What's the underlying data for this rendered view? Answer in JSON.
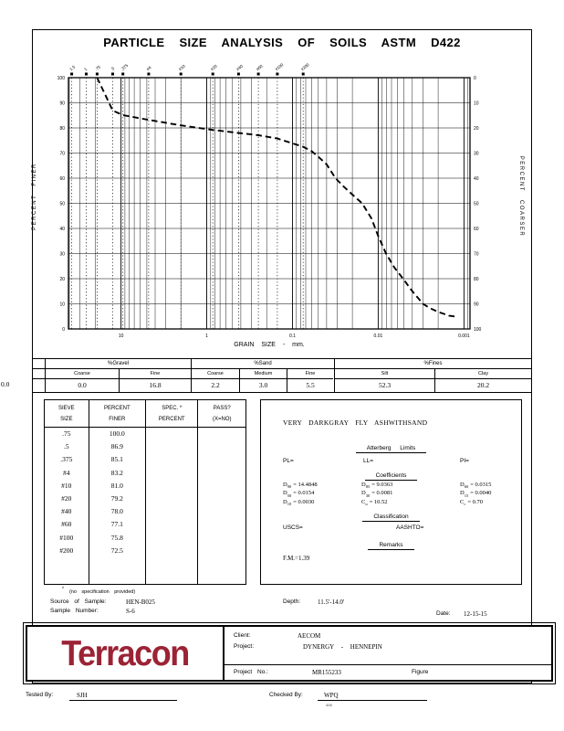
{
  "title": "PARTICLE SIZE ANALYSIS OF SOILS ASTM D422",
  "axis": {
    "left": "PERCENT FINER",
    "right": "PERCENT COARSER"
  },
  "chart_data": {
    "type": "line",
    "title": "",
    "xlabel": "GRAIN SIZE - mm.",
    "ylabel_left": "PERCENT FINER",
    "ylabel_right": "PERCENT COARSER",
    "x_scale": "log",
    "x_min": 41,
    "x_max": 0.00085,
    "x_decade_ticks": [
      10,
      1,
      0.1,
      0.01,
      0.001
    ],
    "x_decade_labels": [
      "10",
      "1",
      "0.1",
      "0.01",
      "0.001"
    ],
    "y_min": 0,
    "y_max": 100,
    "y_tick_step": 10,
    "grid": true,
    "legend": "none",
    "sieve_marks": [
      {
        "label": "1.5",
        "mm": 37.5
      },
      {
        "label": "1",
        "mm": 25.4
      },
      {
        "label": ".75",
        "mm": 19
      },
      {
        "label": ".5",
        "mm": 12.5
      },
      {
        "label": ".375",
        "mm": 9.5
      },
      {
        "label": "#4",
        "mm": 4.75
      },
      {
        "label": "#10",
        "mm": 2.0
      },
      {
        "label": "#20",
        "mm": 0.85
      },
      {
        "label": "#40",
        "mm": 0.425
      },
      {
        "label": "#60",
        "mm": 0.25
      },
      {
        "label": "#100",
        "mm": 0.15
      },
      {
        "label": "#200",
        "mm": 0.075
      }
    ],
    "series": [
      {
        "name": "grain-size-distribution",
        "style": "dashed",
        "points": [
          [
            19,
            100
          ],
          [
            12.5,
            86.9
          ],
          [
            9.5,
            85.1
          ],
          [
            4.75,
            83.2
          ],
          [
            2,
            81.0
          ],
          [
            0.85,
            79.2
          ],
          [
            0.425,
            78.0
          ],
          [
            0.25,
            77.1
          ],
          [
            0.15,
            75.8
          ],
          [
            0.075,
            72.5
          ],
          [
            0.06,
            70.8
          ],
          [
            0.05,
            68.5
          ],
          [
            0.04,
            65.5
          ],
          [
            0.0315,
            60
          ],
          [
            0.025,
            56.5
          ],
          [
            0.02,
            53.5
          ],
          [
            0.0154,
            50
          ],
          [
            0.012,
            44
          ],
          [
            0.01,
            37
          ],
          [
            0.0081,
            30
          ],
          [
            0.0065,
            24.5
          ],
          [
            0.005,
            19.5
          ],
          [
            0.004,
            15
          ],
          [
            0.003,
            10
          ],
          [
            0.0025,
            8.3
          ],
          [
            0.002,
            6.8
          ],
          [
            0.0015,
            5.3
          ],
          [
            0.0012,
            4.8
          ]
        ]
      }
    ]
  },
  "fractions": {
    "outside_value": "0.0",
    "groups": [
      {
        "label": "%Gravel",
        "cols": [
          {
            "h": "Coarse",
            "v": "0.0"
          },
          {
            "h": "Fine",
            "v": "16.8"
          }
        ]
      },
      {
        "label": "%Sand",
        "cols": [
          {
            "h": "Coarse",
            "v": "2.2"
          },
          {
            "h": "Medium",
            "v": "3.0"
          },
          {
            "h": "Fine",
            "v": "5.5"
          }
        ]
      },
      {
        "label": "%Fines",
        "cols": [
          {
            "h": "Silt",
            "v": "52.3"
          },
          {
            "h": "Clay",
            "v": "20.2"
          }
        ]
      }
    ]
  },
  "sieve_table": {
    "headers": [
      {
        "l1": "SIEVE",
        "l2": "SIZE"
      },
      {
        "l1": "PERCENT",
        "l2": "FINER"
      },
      {
        "l1": "SPEC. *",
        "l2": "PERCENT"
      },
      {
        "l1": "PASS?",
        "l2": "(X=NO)"
      }
    ],
    "rows": [
      {
        "size": ".75",
        "finer": "100.0"
      },
      {
        "size": ".5",
        "finer": "86.9"
      },
      {
        "size": ".375",
        "finer": "85.1"
      },
      {
        "size": "#4",
        "finer": "83.2"
      },
      {
        "size": "#10",
        "finer": "81.0"
      },
      {
        "size": "#20",
        "finer": "79.2"
      },
      {
        "size": "#40",
        "finer": "78.0"
      },
      {
        "size": "#60",
        "finer": "77.1"
      },
      {
        "size": "#100",
        "finer": "75.8"
      },
      {
        "size": "#200",
        "finer": "72.5"
      }
    ],
    "footnote_star": "*",
    "footnote": "(no specification provided)"
  },
  "description": {
    "material": "VERY DARKGRAY FLY ASHWITHSAND",
    "atterberg_title": "Atterberg Limits",
    "pl_label": "PL=",
    "ll_label": "LL=",
    "pi_label": "PI=",
    "coefficients_title": "Coefficients",
    "coefficients": [
      {
        "base": "D",
        "sub": "90",
        "value": "=  14.4848"
      },
      {
        "base": "D",
        "sub": "85",
        "value": "=  9.0363"
      },
      {
        "base": "D",
        "sub": "60",
        "value": "=  0.0315"
      },
      {
        "base": "D",
        "sub": "50",
        "value": "=  0.0154"
      },
      {
        "base": "D",
        "sub": "30",
        "value": "=  0.0081"
      },
      {
        "base": "D",
        "sub": "15",
        "value": "=  0.0040"
      },
      {
        "base": "D",
        "sub": "10",
        "value": "=  0.0030"
      },
      {
        "base": "C",
        "sub": "u",
        "value": "=  10.52"
      },
      {
        "base": "C",
        "sub": "c",
        "value": "=  0.70"
      }
    ],
    "classification_title": "Classification",
    "uscs_label": "USCS=",
    "aashto_label": "AASHTO=",
    "remarks_title": "Remarks",
    "fm": "F.M.=1.39"
  },
  "sample": {
    "source_label": "Source of Sample:",
    "source_value": "HEN-B025",
    "depth_label": "Depth:",
    "depth_value": "11.5'-14.0'",
    "number_label": "Sample Number:",
    "number_value": "S-6",
    "date_label": "Date:",
    "date_value": "12-15-15"
  },
  "footer": {
    "logo_text": "Terracon",
    "client_label": "Client:",
    "client": "AECOM",
    "project_label": "Project:",
    "project": "DYNERGY - HENNEPIN",
    "project_no_label": "Project No.:",
    "project_no": "MR155233",
    "figure_label": "Figure"
  },
  "signoff": {
    "tested_label": "Tested By:",
    "tested": "SJH",
    "checked_label": "Checked By:",
    "checked": "WPQ",
    "checked_note": "408"
  },
  "colors": {
    "logo_red": "#9b2335",
    "ink": "#000000",
    "paper": "#ffffff"
  }
}
